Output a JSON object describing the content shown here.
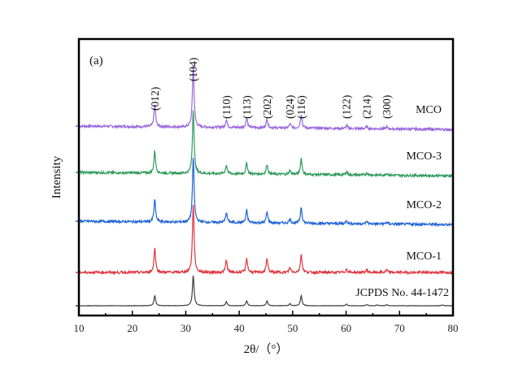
{
  "chart_data": {
    "type": "line",
    "panel_label": "(a)",
    "title": "",
    "xlabel": "2θ/（°）",
    "ylabel": "Intensity",
    "xlim": [
      10,
      80
    ],
    "x_ticks": [
      10,
      20,
      30,
      40,
      50,
      60,
      70,
      80
    ],
    "x_minor_ticks": [
      15,
      25,
      35,
      45,
      55,
      65,
      75
    ],
    "y_ticks": [],
    "grid": false,
    "legend": "inline-right",
    "peak_labels": [
      {
        "hkl": "(012)",
        "x": 24.2
      },
      {
        "hkl": "(104)",
        "x": 31.4
      },
      {
        "hkl": "(110)",
        "x": 37.6
      },
      {
        "hkl": "(113)",
        "x": 41.4
      },
      {
        "hkl": "(202)",
        "x": 45.2
      },
      {
        "hkl": "(024)",
        "x": 49.5
      },
      {
        "hkl": "(116)",
        "x": 51.6
      },
      {
        "hkl": "(122)",
        "x": 60.1
      },
      {
        "hkl": "(214)",
        "x": 63.9
      },
      {
        "hkl": "(300)",
        "x": 67.6
      }
    ],
    "series": [
      {
        "name": "MCO",
        "color": "#9966dd",
        "offset": 4,
        "noise": 0.03,
        "peaks": [
          {
            "x": 24.2,
            "height": 0.55
          },
          {
            "x": 31.4,
            "height": 1.55
          },
          {
            "x": 37.6,
            "height": 0.2
          },
          {
            "x": 41.4,
            "height": 0.25
          },
          {
            "x": 45.2,
            "height": 0.22
          },
          {
            "x": 49.5,
            "height": 0.1
          },
          {
            "x": 51.6,
            "height": 0.35
          },
          {
            "x": 60.1,
            "height": 0.07
          },
          {
            "x": 63.9,
            "height": 0.05
          },
          {
            "x": 67.6,
            "height": 0.05
          }
        ]
      },
      {
        "name": "MCO-3",
        "color": "#2e9a5c",
        "offset": 3,
        "noise": 0.03,
        "peaks": [
          {
            "x": 24.2,
            "height": 0.55
          },
          {
            "x": 31.4,
            "height": 1.6
          },
          {
            "x": 37.6,
            "height": 0.22
          },
          {
            "x": 41.4,
            "height": 0.27
          },
          {
            "x": 45.2,
            "height": 0.25
          },
          {
            "x": 49.5,
            "height": 0.1
          },
          {
            "x": 51.6,
            "height": 0.4
          },
          {
            "x": 60.1,
            "height": 0.08
          },
          {
            "x": 63.9,
            "height": 0.06
          },
          {
            "x": 67.6,
            "height": 0.05
          }
        ]
      },
      {
        "name": "MCO-2",
        "color": "#1f63d6",
        "offset": 2,
        "noise": 0.03,
        "peaks": [
          {
            "x": 24.2,
            "height": 0.55
          },
          {
            "x": 31.4,
            "height": 1.6
          },
          {
            "x": 37.6,
            "height": 0.25
          },
          {
            "x": 41.4,
            "height": 0.3
          },
          {
            "x": 45.2,
            "height": 0.27
          },
          {
            "x": 49.5,
            "height": 0.1
          },
          {
            "x": 51.6,
            "height": 0.4
          },
          {
            "x": 60.1,
            "height": 0.08
          },
          {
            "x": 63.9,
            "height": 0.06
          },
          {
            "x": 67.6,
            "height": 0.05
          }
        ]
      },
      {
        "name": "MCO-1",
        "color": "#e0353e",
        "offset": 1,
        "noise": 0.03,
        "peaks": [
          {
            "x": 24.2,
            "height": 0.6
          },
          {
            "x": 31.4,
            "height": 1.7
          },
          {
            "x": 37.6,
            "height": 0.3
          },
          {
            "x": 41.4,
            "height": 0.35
          },
          {
            "x": 45.2,
            "height": 0.35
          },
          {
            "x": 49.5,
            "height": 0.12
          },
          {
            "x": 51.6,
            "height": 0.45
          },
          {
            "x": 60.1,
            "height": 0.08
          },
          {
            "x": 63.9,
            "height": 0.06
          },
          {
            "x": 67.6,
            "height": 0.06
          }
        ]
      },
      {
        "name": "JCPDS No. 44-1472",
        "color": "#404040",
        "offset": 0.2,
        "noise": 0.005,
        "peaks": [
          {
            "x": 24.2,
            "height": 0.25
          },
          {
            "x": 31.4,
            "height": 0.75
          },
          {
            "x": 37.6,
            "height": 0.1
          },
          {
            "x": 41.4,
            "height": 0.12
          },
          {
            "x": 45.2,
            "height": 0.12
          },
          {
            "x": 49.5,
            "height": 0.05
          },
          {
            "x": 51.6,
            "height": 0.25
          },
          {
            "x": 60.1,
            "height": 0.04
          },
          {
            "x": 63.9,
            "height": 0.03
          },
          {
            "x": 65.8,
            "height": 0.02
          },
          {
            "x": 67.6,
            "height": 0.03
          },
          {
            "x": 78.0,
            "height": 0.02
          }
        ]
      }
    ]
  }
}
